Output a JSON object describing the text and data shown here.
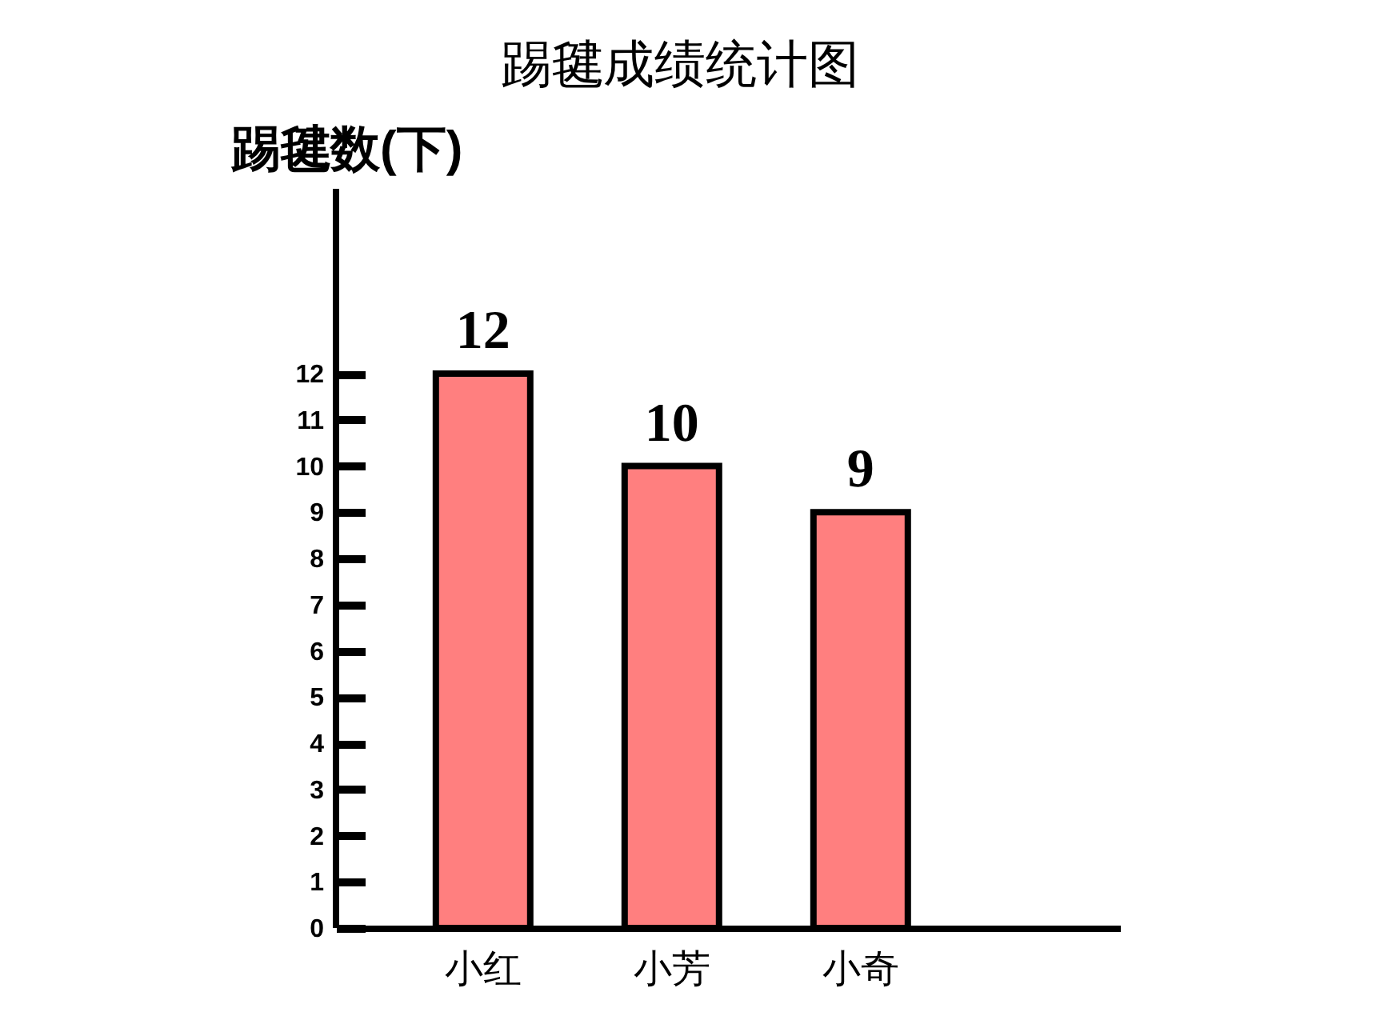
{
  "chart_data": {
    "type": "bar",
    "title": "踢毽成绩统计图",
    "ylabel": "踢毽数(下)",
    "categories": [
      "小红",
      "小芳",
      "小奇"
    ],
    "values": [
      12,
      10,
      9
    ],
    "color": "#ff7f7f",
    "ylim": [
      0,
      16
    ],
    "yticks": [
      0,
      1,
      2,
      3,
      4,
      5,
      6,
      7,
      8,
      9,
      10,
      11,
      12
    ],
    "data_labels": true
  }
}
